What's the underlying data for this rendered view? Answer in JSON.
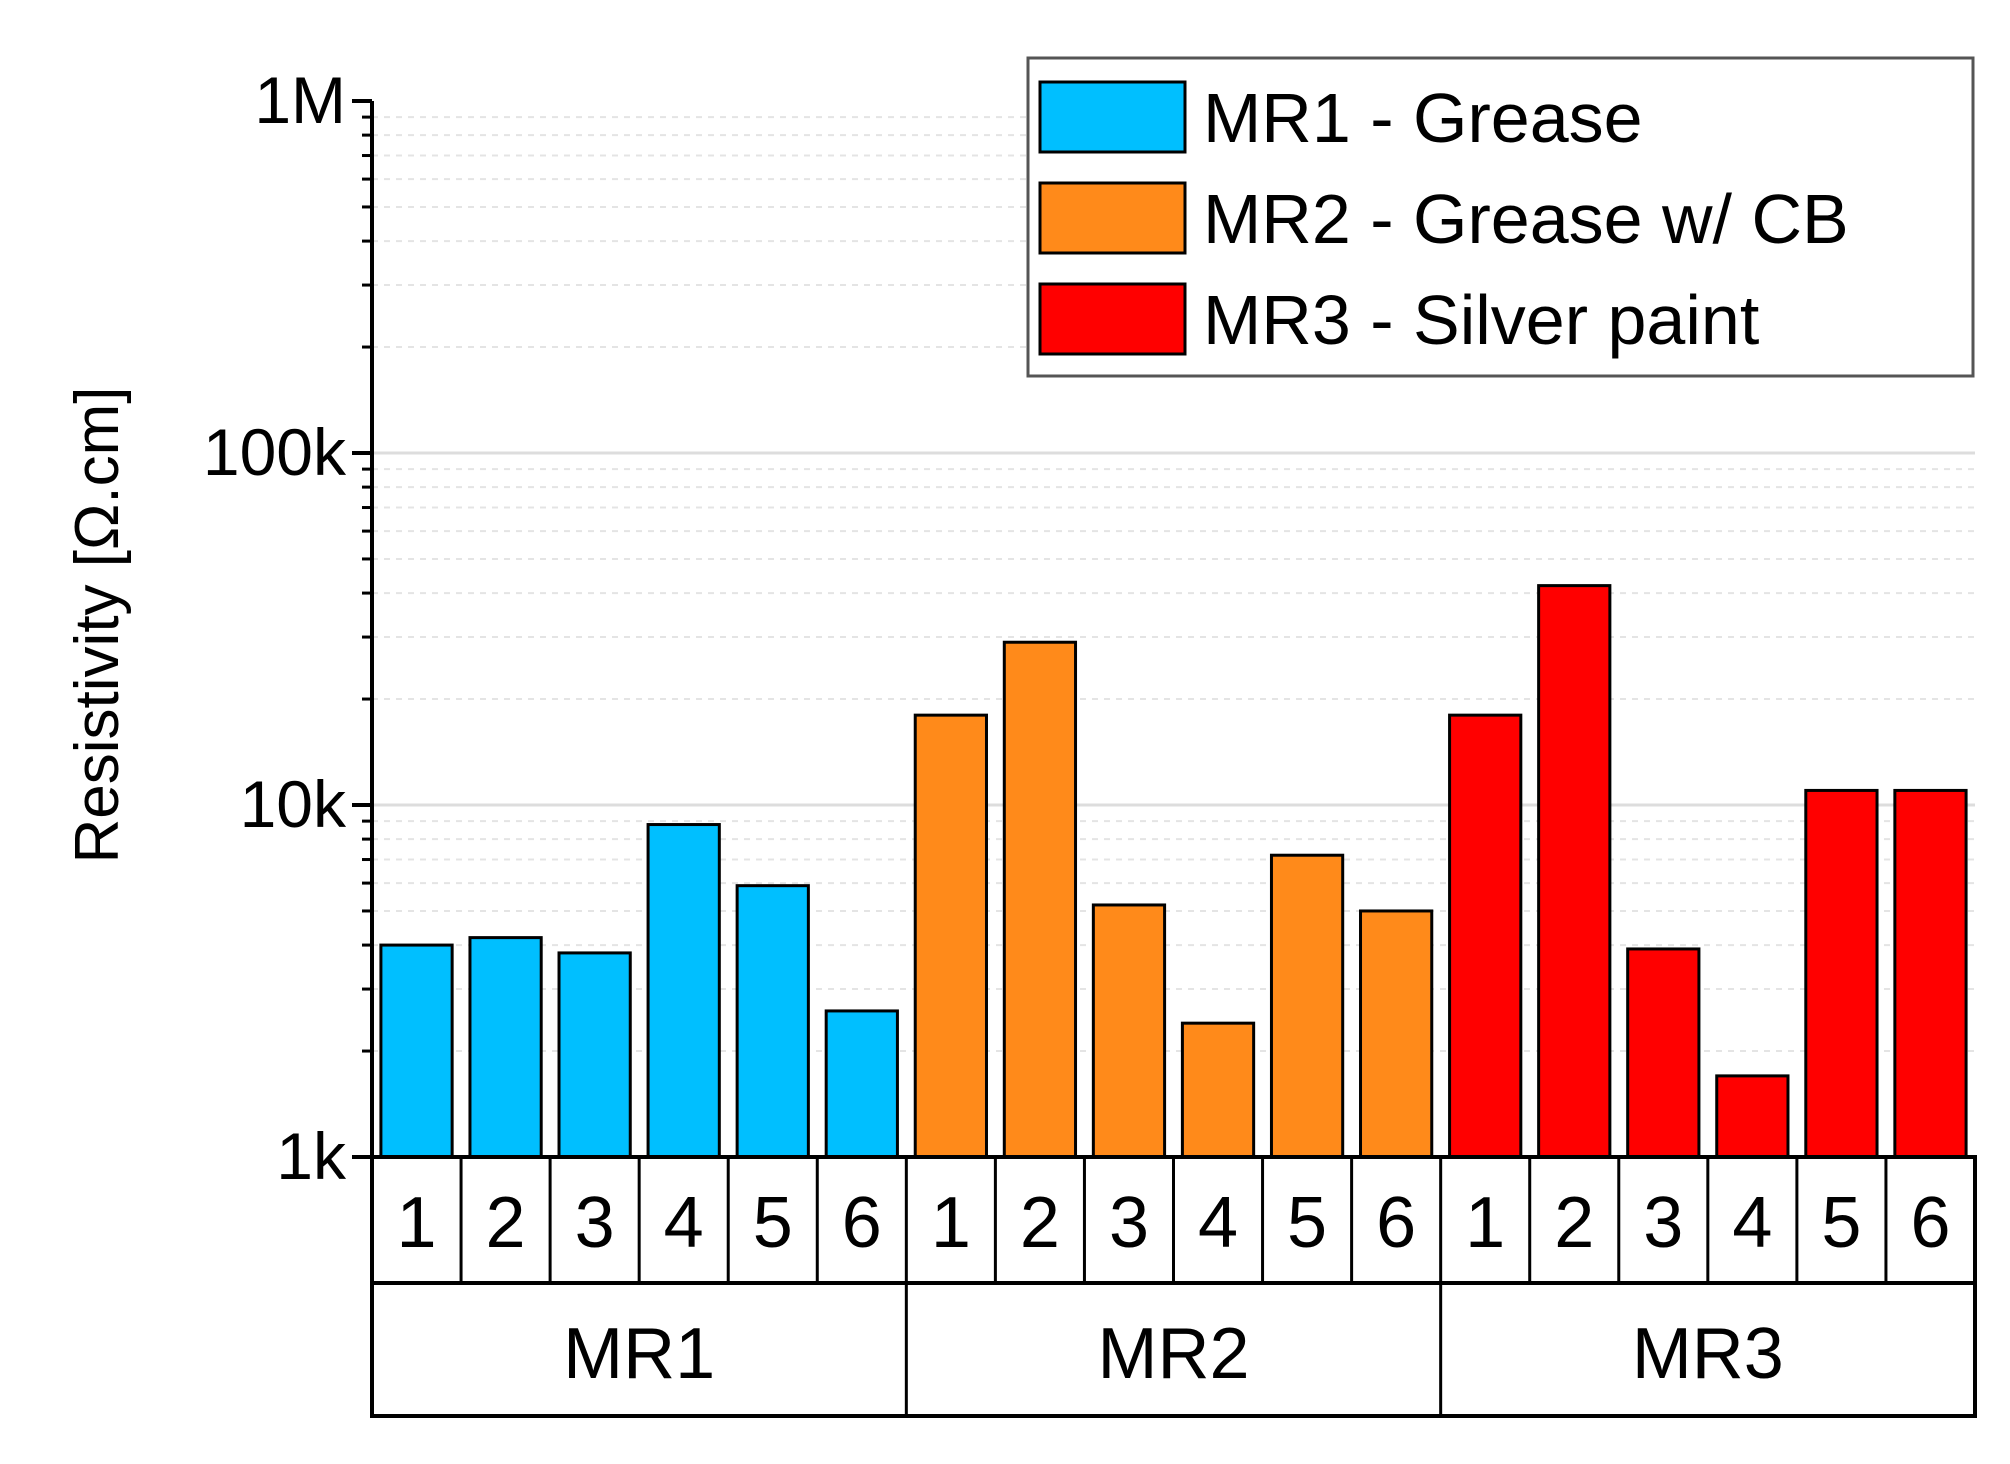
{
  "chart_data": {
    "type": "bar",
    "yscale": "log",
    "ylabel": "Resistivity [Ω.cm]",
    "ylim": [
      1000,
      1000000
    ],
    "yticks": [
      {
        "value": 1000,
        "label": "1k"
      },
      {
        "value": 10000,
        "label": "10k"
      },
      {
        "value": 100000,
        "label": "100k"
      },
      {
        "value": 1000000,
        "label": "1M"
      }
    ],
    "groups": [
      "MR1",
      "MR2",
      "MR3"
    ],
    "categories": [
      "1",
      "2",
      "3",
      "4",
      "5",
      "6"
    ],
    "legend_position": "top-right",
    "series": [
      {
        "name": "MR1 - Grease",
        "group": "MR1",
        "color": "#00BFFF",
        "values": [
          4000,
          4200,
          3800,
          8800,
          5900,
          2600
        ]
      },
      {
        "name": "MR2 - Grease w/ CB",
        "group": "MR2",
        "color": "#FF8A1A",
        "values": [
          18000,
          29000,
          5200,
          2400,
          7200,
          5000
        ]
      },
      {
        "name": "MR3 - Silver paint",
        "group": "MR3",
        "color": "#FF0000",
        "values": [
          18000,
          42000,
          3900,
          1700,
          11000,
          11000
        ]
      }
    ]
  }
}
